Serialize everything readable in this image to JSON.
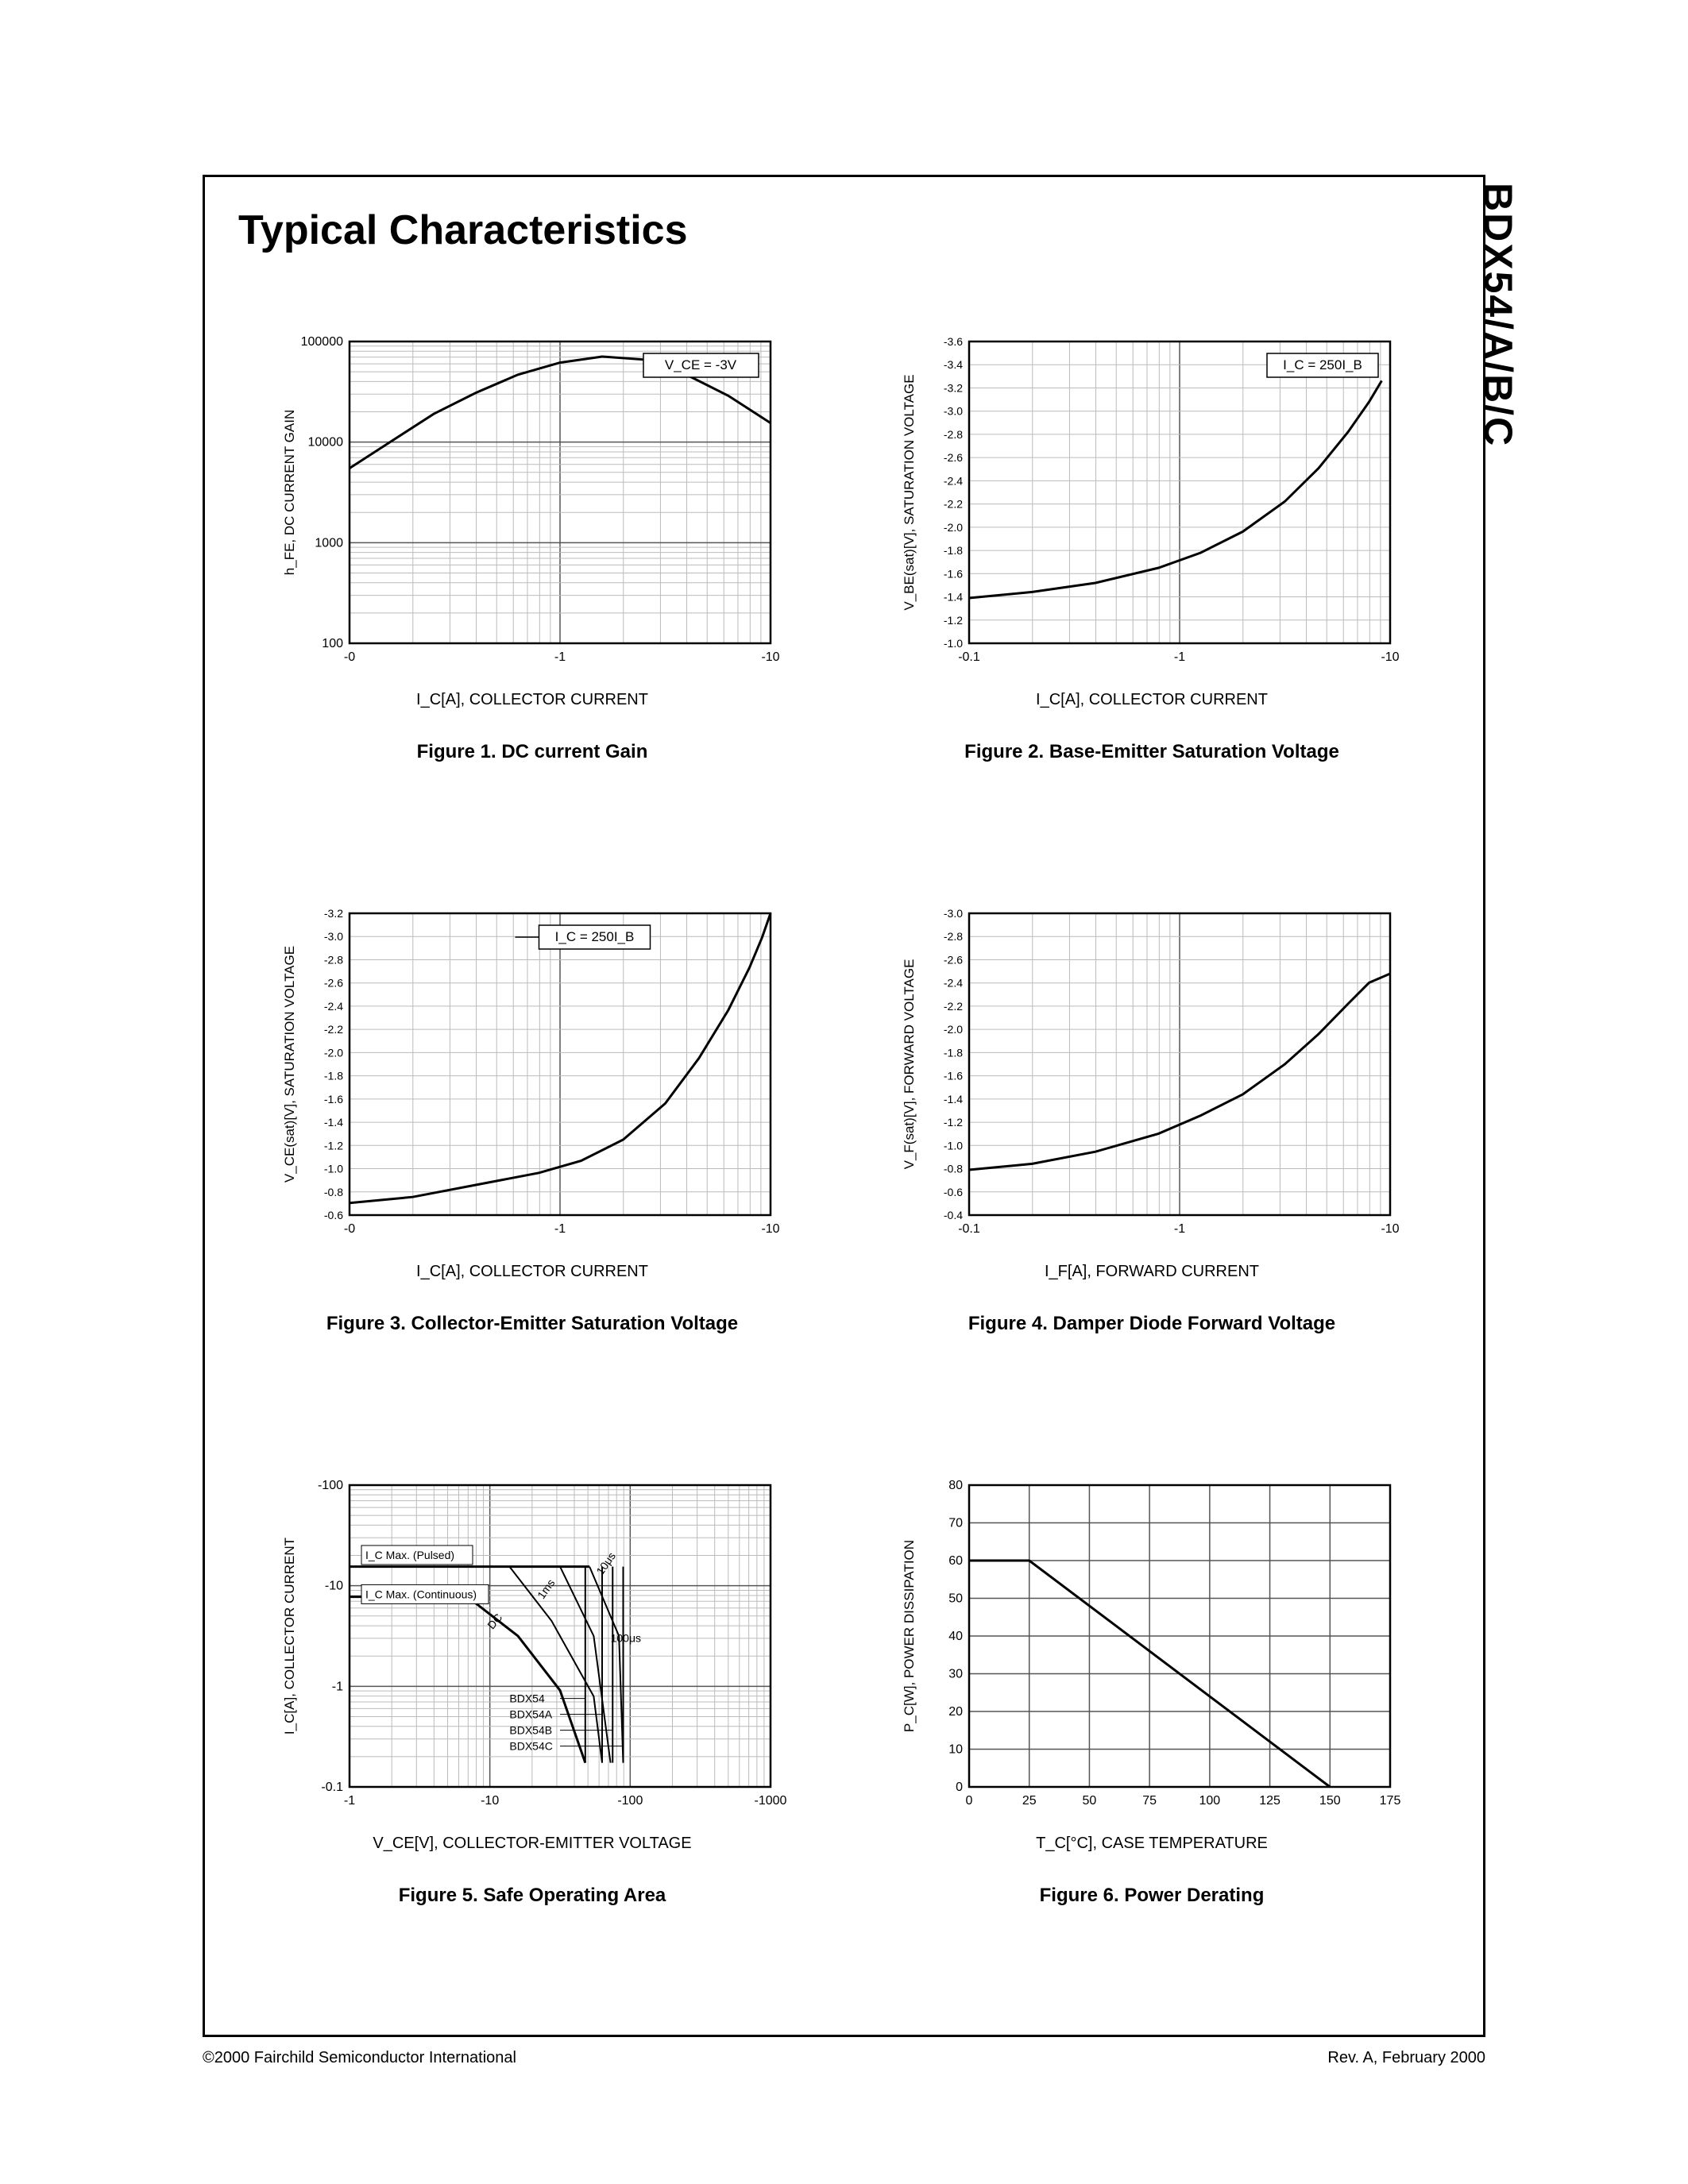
{
  "partNumber": "BDX54/A/B/C",
  "pageTitle": "Typical Characteristics",
  "footer": {
    "copyright": "©2000 Fairchild Semiconductor International",
    "revision": "Rev. A, February 2000"
  },
  "colors": {
    "stroke": "#000000",
    "gridMajor": "#555555",
    "gridMinor": "#bbbbbb",
    "background": "#ffffff"
  },
  "charts": {
    "fig1": {
      "caption": "Figure 1. DC current Gain",
      "xlabel": "I_C[A], COLLECTOR CURRENT",
      "ylabel": "h_FE, DC CURRENT GAIN",
      "annotation": "V_CE = -3V",
      "xScale": "log",
      "yScale": "log",
      "xTicks": [
        "-0",
        "-1",
        "-10"
      ],
      "yTicks": [
        "100",
        "1000",
        "10000",
        "100000"
      ],
      "curve": [
        [
          0,
          0.58
        ],
        [
          0.1,
          0.67
        ],
        [
          0.2,
          0.76
        ],
        [
          0.3,
          0.83
        ],
        [
          0.4,
          0.89
        ],
        [
          0.5,
          0.93
        ],
        [
          0.6,
          0.95
        ],
        [
          0.7,
          0.94
        ],
        [
          0.8,
          0.89
        ],
        [
          0.9,
          0.82
        ],
        [
          1.0,
          0.73
        ]
      ],
      "lineWidth": 3
    },
    "fig2": {
      "caption": "Figure 2. Base-Emitter Saturation Voltage",
      "xlabel": "I_C[A], COLLECTOR CURRENT",
      "ylabel": "V_BE(sat)[V], SATURATION VOLTAGE",
      "annotation": "I_C = 250I_B",
      "xScale": "log",
      "yScale": "linear",
      "xTicks": [
        "-0.1",
        "-1",
        "-10"
      ],
      "yTicks": [
        "-1.0",
        "-1.2",
        "-1.4",
        "-1.6",
        "-1.8",
        "-2.0",
        "-2.2",
        "-2.4",
        "-2.6",
        "-2.8",
        "-3.0",
        "-3.2",
        "-3.4",
        "-3.6"
      ],
      "yRange": [
        -1.0,
        -3.6
      ],
      "curve": [
        [
          0,
          0.15
        ],
        [
          0.15,
          0.17
        ],
        [
          0.3,
          0.2
        ],
        [
          0.45,
          0.25
        ],
        [
          0.55,
          0.3
        ],
        [
          0.65,
          0.37
        ],
        [
          0.75,
          0.47
        ],
        [
          0.83,
          0.58
        ],
        [
          0.9,
          0.7
        ],
        [
          0.95,
          0.8
        ],
        [
          0.98,
          0.87
        ],
        [
          1.0,
          0.77
        ]
      ],
      "curve2": [
        [
          0,
          0.15
        ],
        [
          0.15,
          0.17
        ],
        [
          0.3,
          0.2
        ],
        [
          0.45,
          0.25
        ],
        [
          0.55,
          0.3
        ],
        [
          0.65,
          0.37
        ],
        [
          0.75,
          0.47
        ],
        [
          0.83,
          0.58
        ],
        [
          0.9,
          0.7
        ],
        [
          0.95,
          0.8
        ],
        [
          0.98,
          0.87
        ]
      ],
      "lineWidth": 3
    },
    "fig3": {
      "caption": "Figure 3. Collector-Emitter Saturation Voltage",
      "xlabel": "I_C[A], COLLECTOR CURRENT",
      "ylabel": "V_CE(sat)[V], SATURATION VOLTAGE",
      "annotation": "I_C = 250I_B",
      "xScale": "log",
      "yScale": "linear",
      "xTicks": [
        "-0",
        "-1",
        "-10"
      ],
      "yTicks": [
        "-0.6",
        "-0.8",
        "-1.0",
        "-1.2",
        "-1.4",
        "-1.6",
        "-1.8",
        "-2.0",
        "-2.2",
        "-2.4",
        "-2.6",
        "-2.8",
        "-3.0",
        "-3.2"
      ],
      "yRange": [
        -0.6,
        -3.2
      ],
      "curve": [
        [
          0,
          0.04
        ],
        [
          0.15,
          0.06
        ],
        [
          0.3,
          0.1
        ],
        [
          0.45,
          0.14
        ],
        [
          0.55,
          0.18
        ],
        [
          0.65,
          0.25
        ],
        [
          0.75,
          0.37
        ],
        [
          0.83,
          0.52
        ],
        [
          0.9,
          0.68
        ],
        [
          0.95,
          0.82
        ],
        [
          0.98,
          0.92
        ],
        [
          1.0,
          1.0
        ]
      ],
      "lineWidth": 3
    },
    "fig4": {
      "caption": "Figure 4. Damper Diode Forward Voltage",
      "xlabel": "I_F[A], FORWARD CURRENT",
      "ylabel": "V_F(sat)[V], FORWARD VOLTAGE",
      "xScale": "log",
      "yScale": "linear",
      "xTicks": [
        "-0.1",
        "-1",
        "-10"
      ],
      "yTicks": [
        "-0.4",
        "-0.6",
        "-0.8",
        "-1.0",
        "-1.2",
        "-1.4",
        "-1.6",
        "-1.8",
        "-2.0",
        "-2.2",
        "-2.4",
        "-2.6",
        "-2.8",
        "-3.0"
      ],
      "yRange": [
        -0.4,
        -3.0
      ],
      "curve": [
        [
          0,
          0.15
        ],
        [
          0.15,
          0.17
        ],
        [
          0.3,
          0.21
        ],
        [
          0.45,
          0.27
        ],
        [
          0.55,
          0.33
        ],
        [
          0.65,
          0.4
        ],
        [
          0.75,
          0.5
        ],
        [
          0.83,
          0.6
        ],
        [
          0.9,
          0.7
        ],
        [
          0.95,
          0.77
        ],
        [
          1.0,
          0.8
        ]
      ],
      "lineWidth": 3
    },
    "fig5": {
      "caption": "Figure 5. Safe Operating Area",
      "xlabel": "V_CE[V], COLLECTOR-EMITTER VOLTAGE",
      "ylabel": "I_C[A], COLLECTOR CURRENT",
      "xScale": "log",
      "yScale": "log",
      "xTicks": [
        "-1",
        "-10",
        "-100",
        "-1000"
      ],
      "yTicks": [
        "-0.1",
        "-1",
        "-10",
        "-100"
      ],
      "annotations": {
        "pulsed": "I_C Max. (Pulsed)",
        "continuous": "I_C Max. (Continuous)",
        "dc": "DC",
        "t1": "1ms",
        "t2": "10μs",
        "t3": "100μs",
        "parts": [
          "BDX54",
          "BDX54A",
          "BDX54B",
          "BDX54C"
        ]
      },
      "pulsedLine": [
        [
          0,
          0.73
        ],
        [
          0.57,
          0.73
        ]
      ],
      "contLine": [
        [
          0,
          0.63
        ],
        [
          0.28,
          0.63
        ],
        [
          0.4,
          0.5
        ],
        [
          0.5,
          0.32
        ],
        [
          0.56,
          0.08
        ]
      ],
      "t1Line": [
        [
          0.38,
          0.73
        ],
        [
          0.48,
          0.55
        ],
        [
          0.58,
          0.3
        ],
        [
          0.6,
          0.08
        ]
      ],
      "t2Line": [
        [
          0.57,
          0.73
        ],
        [
          0.64,
          0.5
        ],
        [
          0.65,
          0.08
        ]
      ],
      "t3Line": [
        [
          0.5,
          0.73
        ],
        [
          0.58,
          0.5
        ],
        [
          0.62,
          0.08
        ]
      ],
      "vlines": [
        0.56,
        0.6,
        0.625,
        0.65
      ],
      "lineWidth": 3
    },
    "fig6": {
      "caption": "Figure 6. Power Derating",
      "xlabel": "T_C[°C], CASE TEMPERATURE",
      "ylabel": "P_C[W], POWER DISSIPATION",
      "xScale": "linear",
      "yScale": "linear",
      "xTicks": [
        "0",
        "25",
        "50",
        "75",
        "100",
        "125",
        "150",
        "175"
      ],
      "yTicks": [
        "0",
        "10",
        "20",
        "30",
        "40",
        "50",
        "60",
        "70",
        "80"
      ],
      "xRange": [
        0,
        175
      ],
      "yRange": [
        0,
        80
      ],
      "curve": [
        [
          0,
          60
        ],
        [
          25,
          60
        ],
        [
          150,
          0
        ]
      ],
      "lineWidth": 3
    }
  }
}
